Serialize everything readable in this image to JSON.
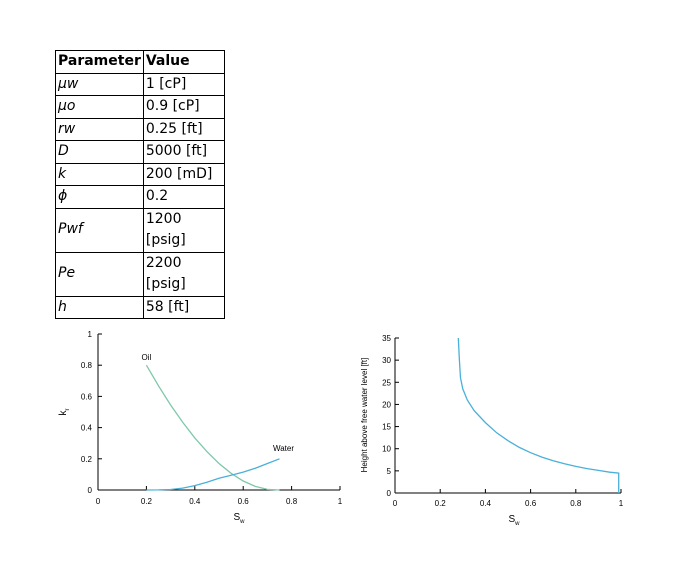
{
  "table": {
    "headers": [
      "Parameter",
      "Value"
    ],
    "rows": [
      {
        "symbol": "μw",
        "value": "1 [cP]"
      },
      {
        "symbol": "μo",
        "value": "0.9 [cP]"
      },
      {
        "symbol": "rw",
        "value": "0.25 [ft]"
      },
      {
        "symbol": "D",
        "value": "5000 [ft]"
      },
      {
        "symbol": "k",
        "value": "200 [mD]"
      },
      {
        "symbol": "ϕ",
        "value": "0.2"
      },
      {
        "symbol": "Pwf",
        "value": "1200 [psig]"
      },
      {
        "symbol": "Pe",
        "value": "2200 [psig]"
      },
      {
        "symbol": "h",
        "value": "58 [ft]"
      }
    ]
  },
  "chart_data": [
    {
      "type": "line",
      "title": "",
      "xlabel_main": "S",
      "xlabel_sub": "w",
      "ylabel_main": "k",
      "ylabel_sub": "r",
      "xlim": [
        0,
        1
      ],
      "ylim": [
        0,
        1
      ],
      "x_ticks": [
        "0",
        "0.2",
        "0.4",
        "0.6",
        "0.8",
        "1"
      ],
      "y_ticks": [
        "0",
        "0.2",
        "0.4",
        "0.6",
        "0.8",
        "1"
      ],
      "grid": false,
      "series": [
        {
          "name": "Oil",
          "color": "#7fc8a9",
          "x": [
            0.2,
            0.25,
            0.3,
            0.35,
            0.4,
            0.45,
            0.5,
            0.55,
            0.6,
            0.65,
            0.7,
            0.75
          ],
          "y": [
            0.8,
            0.668,
            0.545,
            0.434,
            0.334,
            0.246,
            0.17,
            0.107,
            0.058,
            0.023,
            0.004,
            0.0
          ]
        },
        {
          "name": "Water",
          "color": "#4ab0d9",
          "x": [
            0.2,
            0.25,
            0.3,
            0.35,
            0.4,
            0.45,
            0.5,
            0.55,
            0.6,
            0.65,
            0.7,
            0.75
          ],
          "y": [
            0.0,
            0.0004,
            0.0035,
            0.012,
            0.028,
            0.05,
            0.075,
            0.095,
            0.115,
            0.14,
            0.17,
            0.2
          ]
        }
      ]
    },
    {
      "type": "line",
      "title": "",
      "xlabel_main": "S",
      "xlabel_sub": "w",
      "ylabel": "Height above free water level [ft]",
      "xlim": [
        0,
        1
      ],
      "ylim": [
        0,
        35
      ],
      "x_ticks": [
        "0",
        "0.2",
        "0.4",
        "0.6",
        "0.8",
        "1"
      ],
      "y_ticks": [
        "0",
        "5",
        "10",
        "15",
        "20",
        "25",
        "30",
        "35"
      ],
      "grid": false,
      "series": [
        {
          "color": "#4ab0d9",
          "x": [
            0.28,
            0.285,
            0.29,
            0.3,
            0.32,
            0.35,
            0.4,
            0.45,
            0.5,
            0.55,
            0.6,
            0.65,
            0.7,
            0.75,
            0.8,
            0.85,
            0.9,
            0.95,
            0.99,
            0.99
          ],
          "y": [
            35,
            30,
            26,
            23.5,
            21,
            18.6,
            15.9,
            13.6,
            11.8,
            10.3,
            9.1,
            8.1,
            7.3,
            6.6,
            6.0,
            5.5,
            5.1,
            4.7,
            4.5,
            0
          ]
        }
      ]
    }
  ]
}
